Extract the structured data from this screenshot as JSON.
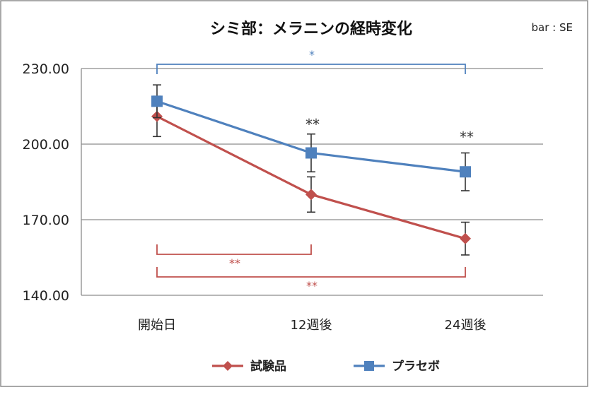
{
  "chart_data": {
    "type": "line",
    "title": "シミ部：メラニンの経時変化",
    "note": "bar : SE",
    "categories": [
      "開始日",
      "12週後",
      "24週後"
    ],
    "yticks": [
      "230.00",
      "200.00",
      "170.00",
      "140.00"
    ],
    "ylim": [
      140,
      230
    ],
    "grid": true,
    "legend_position": "bottom",
    "series": [
      {
        "name": "試験品",
        "values": [
          211,
          180,
          162.5
        ],
        "se": [
          8,
          7,
          6.5
        ],
        "color": "#c0504d",
        "marker": "diamond"
      },
      {
        "name": "プラセボ",
        "values": [
          217,
          196.5,
          189
        ],
        "se": [
          6.5,
          7.5,
          7.5
        ],
        "color": "#4f81bd",
        "marker": "square"
      }
    ],
    "point_annotations": [
      {
        "category": "12週後",
        "text": "**"
      },
      {
        "category": "24週後",
        "text": "**"
      }
    ],
    "brackets": [
      {
        "from": "開始日",
        "to": "24週後",
        "text": "*",
        "color": "#4f81bd"
      },
      {
        "from": "開始日",
        "to": "12週後",
        "text": "**",
        "color": "#c0504d"
      },
      {
        "from": "開始日",
        "to": "24週後",
        "text": "**",
        "color": "#c0504d"
      }
    ]
  }
}
